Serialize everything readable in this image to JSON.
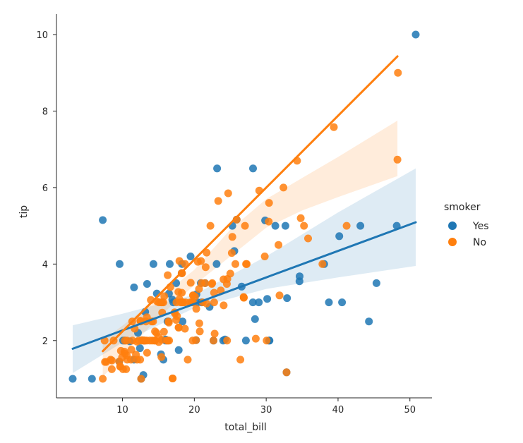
{
  "chart_data": {
    "type": "scatter",
    "title": "",
    "xlabel": "total_bill",
    "ylabel": "tip",
    "xlim": [
      1.5,
      53
    ],
    "ylim": [
      0.5,
      10.5
    ],
    "xticks": [
      "10",
      "20",
      "30",
      "40",
      "50"
    ],
    "yticks": [
      "2",
      "4",
      "6",
      "8",
      "10"
    ],
    "xtick_values": [
      10,
      20,
      30,
      40,
      50
    ],
    "ytick_values": [
      2,
      4,
      6,
      8,
      10
    ],
    "grid": false,
    "legend": {
      "title": "smoker",
      "placement": "right"
    },
    "series": [
      {
        "name": "Yes",
        "color": "#1f77b4",
        "fit": {
          "slope": 0.0693,
          "intercept": 1.572,
          "x_range": [
            3.07,
            50.81
          ]
        },
        "ci_band": {
          "x": [
            3.07,
            10,
            20,
            30,
            40,
            50.81
          ],
          "lower": [
            1.15,
            1.95,
            2.85,
            3.35,
            3.65,
            3.95
          ],
          "upper": [
            2.4,
            2.7,
            3.2,
            4.2,
            5.35,
            6.5
          ]
        },
        "points": [
          [
            3.07,
            1.0
          ],
          [
            5.75,
            1.0
          ],
          [
            7.25,
            5.15
          ],
          [
            9.6,
            4.0
          ],
          [
            10.08,
            2.0
          ],
          [
            10.34,
            2.0
          ],
          [
            11.02,
            1.98
          ],
          [
            11.59,
            1.5
          ],
          [
            11.61,
            3.39
          ],
          [
            12.16,
            2.2
          ],
          [
            12.6,
            1.0
          ],
          [
            12.9,
            1.1
          ],
          [
            13.0,
            2.0
          ],
          [
            13.16,
            2.75
          ],
          [
            13.42,
            3.48
          ],
          [
            14.31,
            4.0
          ],
          [
            15.69,
            1.5
          ],
          [
            15.36,
            1.64
          ],
          [
            16.0,
            2.0
          ],
          [
            16.27,
            2.5
          ],
          [
            16.4,
            2.5
          ],
          [
            16.47,
            3.23
          ],
          [
            16.58,
            4.0
          ],
          [
            16.93,
            3.07
          ],
          [
            17.07,
            3.0
          ],
          [
            17.47,
            3.5
          ],
          [
            17.82,
            1.75
          ],
          [
            18.24,
            3.76
          ],
          [
            18.28,
            4.0
          ],
          [
            18.35,
            2.5
          ],
          [
            19.47,
            4.2
          ],
          [
            20.23,
            2.01
          ],
          [
            20.29,
            3.21
          ],
          [
            20.45,
            3.0
          ],
          [
            20.9,
            3.5
          ],
          [
            21.01,
            3.0
          ],
          [
            21.5,
            3.5
          ],
          [
            22.12,
            2.88
          ],
          [
            23.1,
            4.0
          ],
          [
            23.17,
            6.5
          ],
          [
            24.01,
            2.0
          ],
          [
            24.27,
            2.03
          ],
          [
            25.28,
            5.0
          ],
          [
            25.89,
            5.16
          ],
          [
            26.59,
            3.41
          ],
          [
            27.18,
            2.0
          ],
          [
            28.15,
            3.0
          ],
          [
            28.17,
            6.5
          ],
          [
            28.44,
            2.56
          ],
          [
            28.97,
            3.0
          ],
          [
            29.85,
            5.14
          ],
          [
            30.14,
            3.09
          ],
          [
            30.4,
            2.0
          ],
          [
            30.46,
            2.0
          ],
          [
            32.68,
            5.0
          ],
          [
            32.9,
            3.11
          ],
          [
            34.63,
            3.55
          ],
          [
            34.65,
            3.68
          ],
          [
            38.07,
            4.0
          ],
          [
            38.73,
            3.0
          ],
          [
            40.55,
            3.0
          ],
          [
            43.11,
            5.0
          ],
          [
            44.3,
            2.5
          ],
          [
            45.35,
            3.5
          ],
          [
            48.17,
            5.0
          ],
          [
            50.81,
            10.0
          ],
          [
            32.83,
            1.17
          ],
          [
            22.67,
            2.0
          ],
          [
            25.56,
            4.34
          ],
          [
            31.27,
            5.0
          ],
          [
            40.17,
            4.73
          ],
          [
            9.55,
            1.45
          ],
          [
            12.43,
            1.8
          ],
          [
            14.78,
            3.23
          ],
          [
            15.98,
            2.03
          ]
        ]
      },
      {
        "name": "No",
        "color": "#ff7f0e",
        "fit": {
          "slope": 0.1879,
          "intercept": 0.36,
          "x_range": [
            7.25,
            48.27
          ]
        },
        "ci_band": {
          "x": [
            7.25,
            15,
            20,
            25,
            30,
            35,
            40,
            48.27
          ],
          "lower": [
            1.05,
            2.6,
            3.45,
            4.2,
            4.95,
            5.4,
            5.75,
            6.3
          ],
          "upper": [
            2.0,
            3.1,
            3.85,
            4.9,
            5.7,
            6.25,
            6.8,
            7.75
          ]
        },
        "points": [
          [
            7.25,
            1.0
          ],
          [
            7.51,
            2.0
          ],
          [
            7.74,
            1.44
          ],
          [
            8.35,
            1.5
          ],
          [
            8.51,
            1.25
          ],
          [
            8.52,
            1.48
          ],
          [
            8.77,
            2.0
          ],
          [
            9.68,
            1.32
          ],
          [
            9.78,
            1.73
          ],
          [
            9.94,
            1.56
          ],
          [
            10.07,
            1.25
          ],
          [
            10.27,
            1.71
          ],
          [
            10.33,
            2.0
          ],
          [
            10.51,
            1.25
          ],
          [
            10.63,
            2.0
          ],
          [
            10.65,
            1.5
          ],
          [
            11.17,
            1.5
          ],
          [
            11.24,
            1.76
          ],
          [
            11.35,
            2.5
          ],
          [
            11.38,
            2.0
          ],
          [
            11.87,
            1.63
          ],
          [
            12.02,
            1.97
          ],
          [
            12.03,
            1.5
          ],
          [
            12.26,
            2.0
          ],
          [
            12.46,
            1.5
          ],
          [
            12.54,
            2.5
          ],
          [
            12.69,
            2.0
          ],
          [
            12.74,
            2.01
          ],
          [
            13.03,
            2.0
          ],
          [
            13.13,
            2.0
          ],
          [
            13.27,
            2.5
          ],
          [
            13.37,
            2.0
          ],
          [
            13.81,
            2.0
          ],
          [
            13.94,
            3.06
          ],
          [
            14.07,
            2.5
          ],
          [
            14.15,
            2.0
          ],
          [
            14.26,
            2.5
          ],
          [
            14.52,
            2.0
          ],
          [
            14.73,
            2.2
          ],
          [
            14.83,
            3.02
          ],
          [
            15.01,
            2.09
          ],
          [
            15.04,
            1.96
          ],
          [
            15.06,
            3.0
          ],
          [
            15.38,
            3.0
          ],
          [
            15.42,
            1.57
          ],
          [
            15.48,
            2.02
          ],
          [
            15.53,
            3.0
          ],
          [
            15.77,
            2.23
          ],
          [
            15.81,
            3.16
          ],
          [
            16.29,
            3.71
          ],
          [
            16.31,
            2.0
          ],
          [
            16.45,
            2.47
          ],
          [
            16.66,
            3.4
          ],
          [
            16.97,
            1.01
          ],
          [
            16.99,
            1.01
          ],
          [
            17.26,
            2.74
          ],
          [
            17.29,
            2.71
          ],
          [
            17.46,
            2.54
          ],
          [
            17.59,
            2.64
          ],
          [
            17.78,
            3.27
          ],
          [
            17.81,
            2.34
          ],
          [
            17.92,
            4.08
          ],
          [
            18.04,
            3.0
          ],
          [
            18.26,
            3.25
          ],
          [
            18.29,
            3.0
          ],
          [
            18.43,
            3.0
          ],
          [
            18.69,
            2.31
          ],
          [
            18.71,
            4.0
          ],
          [
            18.78,
            3.0
          ],
          [
            19.44,
            3.0
          ],
          [
            19.49,
            3.51
          ],
          [
            19.65,
            3.0
          ],
          [
            19.77,
            2.0
          ],
          [
            19.81,
            3.0
          ],
          [
            19.82,
            3.18
          ],
          [
            20.08,
            3.15
          ],
          [
            20.27,
            2.83
          ],
          [
            20.49,
            4.06
          ],
          [
            20.65,
            3.35
          ],
          [
            20.69,
            2.45
          ],
          [
            20.92,
            4.08
          ],
          [
            21.01,
            3.5
          ],
          [
            21.16,
            3.0
          ],
          [
            21.58,
            3.92
          ],
          [
            22.23,
            5.0
          ],
          [
            22.42,
            3.48
          ],
          [
            22.49,
            3.5
          ],
          [
            22.75,
            3.25
          ],
          [
            22.76,
            3.0
          ],
          [
            23.33,
            5.65
          ],
          [
            23.68,
            3.31
          ],
          [
            24.06,
            3.6
          ],
          [
            24.08,
            2.92
          ],
          [
            24.55,
            2.0
          ],
          [
            24.59,
            3.61
          ],
          [
            24.71,
            5.85
          ],
          [
            25.0,
            3.75
          ],
          [
            25.21,
            4.29
          ],
          [
            25.29,
            4.71
          ],
          [
            25.71,
            4.0
          ],
          [
            26.41,
            1.5
          ],
          [
            26.86,
            3.14
          ],
          [
            26.88,
            3.12
          ],
          [
            27.2,
            4.0
          ],
          [
            27.28,
            4.0
          ],
          [
            28.55,
            2.05
          ],
          [
            29.03,
            5.92
          ],
          [
            29.8,
            4.2
          ],
          [
            30.06,
            2.0
          ],
          [
            30.4,
            5.6
          ],
          [
            31.85,
            3.18
          ],
          [
            32.4,
            6.0
          ],
          [
            32.83,
            1.17
          ],
          [
            34.3,
            6.7
          ],
          [
            34.81,
            5.2
          ],
          [
            35.26,
            5.0
          ],
          [
            39.42,
            7.58
          ],
          [
            48.27,
            6.73
          ],
          [
            48.33,
            9.0
          ],
          [
            7.56,
            1.44
          ],
          [
            9.55,
            1.45
          ],
          [
            10.59,
            1.61
          ],
          [
            12.48,
            2.52
          ],
          [
            13.42,
            1.68
          ],
          [
            14.48,
            2.0
          ],
          [
            16.21,
            2.0
          ],
          [
            17.51,
            3.0
          ],
          [
            17.92,
            3.08
          ],
          [
            18.24,
            3.76
          ],
          [
            19.08,
            1.5
          ],
          [
            20.76,
            2.24
          ],
          [
            21.7,
            4.3
          ],
          [
            22.82,
            2.18
          ],
          [
            24.52,
            3.48
          ],
          [
            26.88,
            3.12
          ],
          [
            30.36,
            5.11
          ],
          [
            31.71,
            4.5
          ],
          [
            35.83,
            4.67
          ],
          [
            41.19,
            5.0
          ],
          [
            21.5,
            3.5
          ],
          [
            12.6,
            1.0
          ],
          [
            15.69,
            3.0
          ],
          [
            20.23,
            2.01
          ],
          [
            9.68,
            1.32
          ],
          [
            25.89,
            5.16
          ],
          [
            27.05,
            5.0
          ],
          [
            37.82,
            4.0
          ],
          [
            16.49,
            2.0
          ],
          [
            11.69,
            2.31
          ],
          [
            14.52,
            2.24
          ],
          [
            18.29,
            3.76
          ],
          [
            22.67,
            2.0
          ],
          [
            16.4,
            2.5
          ],
          [
            13.0,
            2.0
          ],
          [
            10.34,
            1.66
          ],
          [
            21.7,
            2.97
          ],
          [
            19.82,
            3.18
          ],
          [
            17.81,
            2.34
          ],
          [
            13.39,
            2.61
          ],
          [
            15.53,
            2.73
          ]
        ]
      }
    ]
  }
}
